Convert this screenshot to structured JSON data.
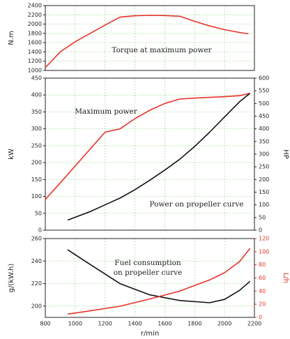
{
  "chart_data": [
    {
      "type": "line",
      "ylabel": "N.m",
      "annotations": [
        "Torque at maximum power"
      ],
      "xlim": [
        800,
        2200
      ],
      "xticks": [
        800,
        1000,
        1200,
        1400,
        1600,
        1800,
        2000,
        2200
      ],
      "ylim": [
        1000,
        2400
      ],
      "yticks": [
        1000,
        1200,
        1400,
        1600,
        1800,
        2000,
        2200,
        2400
      ],
      "grid": true,
      "series": [
        {
          "color": "#e8322a",
          "x": [
            800,
            900,
            1000,
            1100,
            1200,
            1300,
            1400,
            1500,
            1600,
            1700,
            1800,
            1900,
            2000,
            2100,
            2160
          ],
          "values": [
            1060,
            1400,
            1620,
            1800,
            1980,
            2150,
            2180,
            2190,
            2185,
            2170,
            2060,
            1960,
            1880,
            1820,
            1790
          ]
        }
      ]
    },
    {
      "type": "line",
      "ylabel": "kW",
      "y2label": "HP",
      "annotations": [
        "Maximum power",
        "Power on propeller curve"
      ],
      "xlim": [
        800,
        2200
      ],
      "xticks": [
        800,
        1000,
        1200,
        1400,
        1600,
        1800,
        2000,
        2200
      ],
      "ylim": [
        0,
        450
      ],
      "yticks": [
        0,
        50,
        100,
        150,
        200,
        250,
        300,
        350,
        400,
        450
      ],
      "y2lim": [
        0,
        600
      ],
      "y2ticks": [
        0,
        50,
        100,
        150,
        200,
        250,
        300,
        350,
        400,
        450,
        500,
        550,
        600
      ],
      "grid": true,
      "series": [
        {
          "color": "#e8322a",
          "x": [
            800,
            900,
            1000,
            1100,
            1200,
            1300,
            1400,
            1500,
            1600,
            1700,
            1800,
            1900,
            2000,
            2100,
            2170
          ],
          "values": [
            91,
            140,
            190,
            240,
            290,
            300,
            330,
            355,
            375,
            388,
            391,
            393,
            395,
            398,
            405
          ]
        },
        {
          "color": "#111111",
          "x": [
            950,
            1100,
            1200,
            1300,
            1400,
            1500,
            1600,
            1700,
            1800,
            1900,
            2000,
            2100,
            2170
          ],
          "values": [
            30,
            55,
            75,
            95,
            120,
            148,
            178,
            210,
            248,
            290,
            335,
            380,
            405
          ]
        }
      ]
    },
    {
      "type": "line",
      "ylabel": "g/(kW.h)",
      "y2label": "L/h",
      "y2color": "#e8322a",
      "xlabel": "r/min",
      "annotations": [
        "Fuel consumption",
        "on propeller curve"
      ],
      "xlim": [
        800,
        2200
      ],
      "xticks": [
        800,
        1000,
        1200,
        1400,
        1600,
        1800,
        2000,
        2200
      ],
      "ylim": [
        190,
        260
      ],
      "yticks": [
        200,
        220,
        240,
        260
      ],
      "y2lim": [
        0,
        120
      ],
      "y2ticks": [
        0,
        20,
        40,
        60,
        80,
        100,
        120
      ],
      "grid": true,
      "series": [
        {
          "color": "#111111",
          "x": [
            950,
            1100,
            1300,
            1500,
            1700,
            1900,
            2000,
            2100,
            2170
          ],
          "values": [
            250,
            237,
            220,
            210,
            205,
            203,
            206,
            214,
            222
          ]
        },
        {
          "color": "#e8322a",
          "axis": "y2",
          "x": [
            950,
            1100,
            1300,
            1500,
            1700,
            1900,
            2000,
            2100,
            2170
          ],
          "values": [
            5,
            10,
            17,
            28,
            40,
            57,
            68,
            85,
            105
          ]
        }
      ]
    }
  ]
}
